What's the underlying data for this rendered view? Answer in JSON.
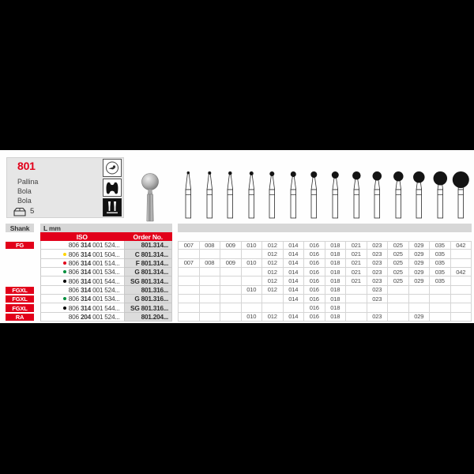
{
  "page": {
    "background": "#000000",
    "panel_background": "#fefefe"
  },
  "colors": {
    "brand_red": "#e2001a",
    "header_gray": "#d7d7d7",
    "order_column_gray": "#dcdcdc",
    "grid_line": "#d2d2d2",
    "dots": {
      "yellow": "#ffd500",
      "red": "#e2001a",
      "green": "#008f3d",
      "black": "#000000"
    }
  },
  "product": {
    "number": "801",
    "names": [
      "Pallina",
      "Bola",
      "Bola"
    ],
    "pack_qty": "5",
    "pictograms": [
      "turbine-speed-icon",
      "cavity-prep-icon",
      "bur-assortment-icon"
    ]
  },
  "table": {
    "headers": {
      "shank": "Shank",
      "l_mm": "L mm",
      "iso": "ISO",
      "order_no": "Order No."
    },
    "size_columns": [
      "007",
      "008",
      "009",
      "010",
      "012",
      "014",
      "016",
      "018",
      "021",
      "023",
      "025",
      "029",
      "035",
      "042"
    ],
    "rows": [
      {
        "shank": "FG",
        "dot": null,
        "iso": [
          "806",
          "314",
          "001 524..."
        ],
        "order": "801.314...",
        "sizes": [
          "007",
          "008",
          "009",
          "010",
          "012",
          "014",
          "016",
          "018",
          "021",
          "023",
          "025",
          "029",
          "035",
          "042"
        ]
      },
      {
        "shank": null,
        "dot": "yellow",
        "iso": [
          "806",
          "314",
          "001 504..."
        ],
        "order": "C 801.314...",
        "sizes": [
          "012",
          "014",
          "016",
          "018",
          "021",
          "023",
          "025",
          "029",
          "035"
        ]
      },
      {
        "shank": null,
        "dot": "red",
        "iso": [
          "806",
          "314",
          "001 514..."
        ],
        "order": "F 801.314...",
        "sizes": [
          "007",
          "008",
          "009",
          "010",
          "012",
          "014",
          "016",
          "018",
          "021",
          "023",
          "025",
          "029",
          "035"
        ]
      },
      {
        "shank": null,
        "dot": "green",
        "iso": [
          "806",
          "314",
          "001 534..."
        ],
        "order": "G 801.314...",
        "sizes": [
          "012",
          "014",
          "016",
          "018",
          "021",
          "023",
          "025",
          "029",
          "035",
          "042"
        ]
      },
      {
        "shank": null,
        "dot": "black",
        "iso": [
          "806",
          "314",
          "001 544..."
        ],
        "order": "SG 801.314...",
        "sizes": [
          "012",
          "014",
          "016",
          "018",
          "021",
          "023",
          "025",
          "029",
          "035"
        ]
      },
      {
        "shank": "FGXL",
        "dot": null,
        "iso": [
          "806",
          "314",
          "001 524..."
        ],
        "order": "801.316...",
        "sizes": [
          "010",
          "012",
          "014",
          "016",
          "018",
          "023"
        ]
      },
      {
        "shank": "FGXL",
        "dot": "green",
        "iso": [
          "806",
          "314",
          "001 534..."
        ],
        "order": "G 801.316...",
        "sizes": [
          "014",
          "016",
          "018",
          "023"
        ]
      },
      {
        "shank": "FGXL",
        "dot": "black",
        "iso": [
          "806",
          "314",
          "001 544..."
        ],
        "order": "SG 801.316...",
        "sizes": [
          "016",
          "018"
        ]
      },
      {
        "shank": "RA",
        "dot": null,
        "iso": [
          "806",
          "204",
          "001 524..."
        ],
        "order": "801.204...",
        "sizes": [
          "010",
          "012",
          "014",
          "016",
          "018",
          "023",
          "029"
        ]
      }
    ]
  },
  "silhouettes": {
    "ball_sizes": [
      7,
      8,
      9,
      10,
      12,
      14,
      16,
      18,
      21,
      23,
      25,
      29,
      35,
      42
    ]
  }
}
